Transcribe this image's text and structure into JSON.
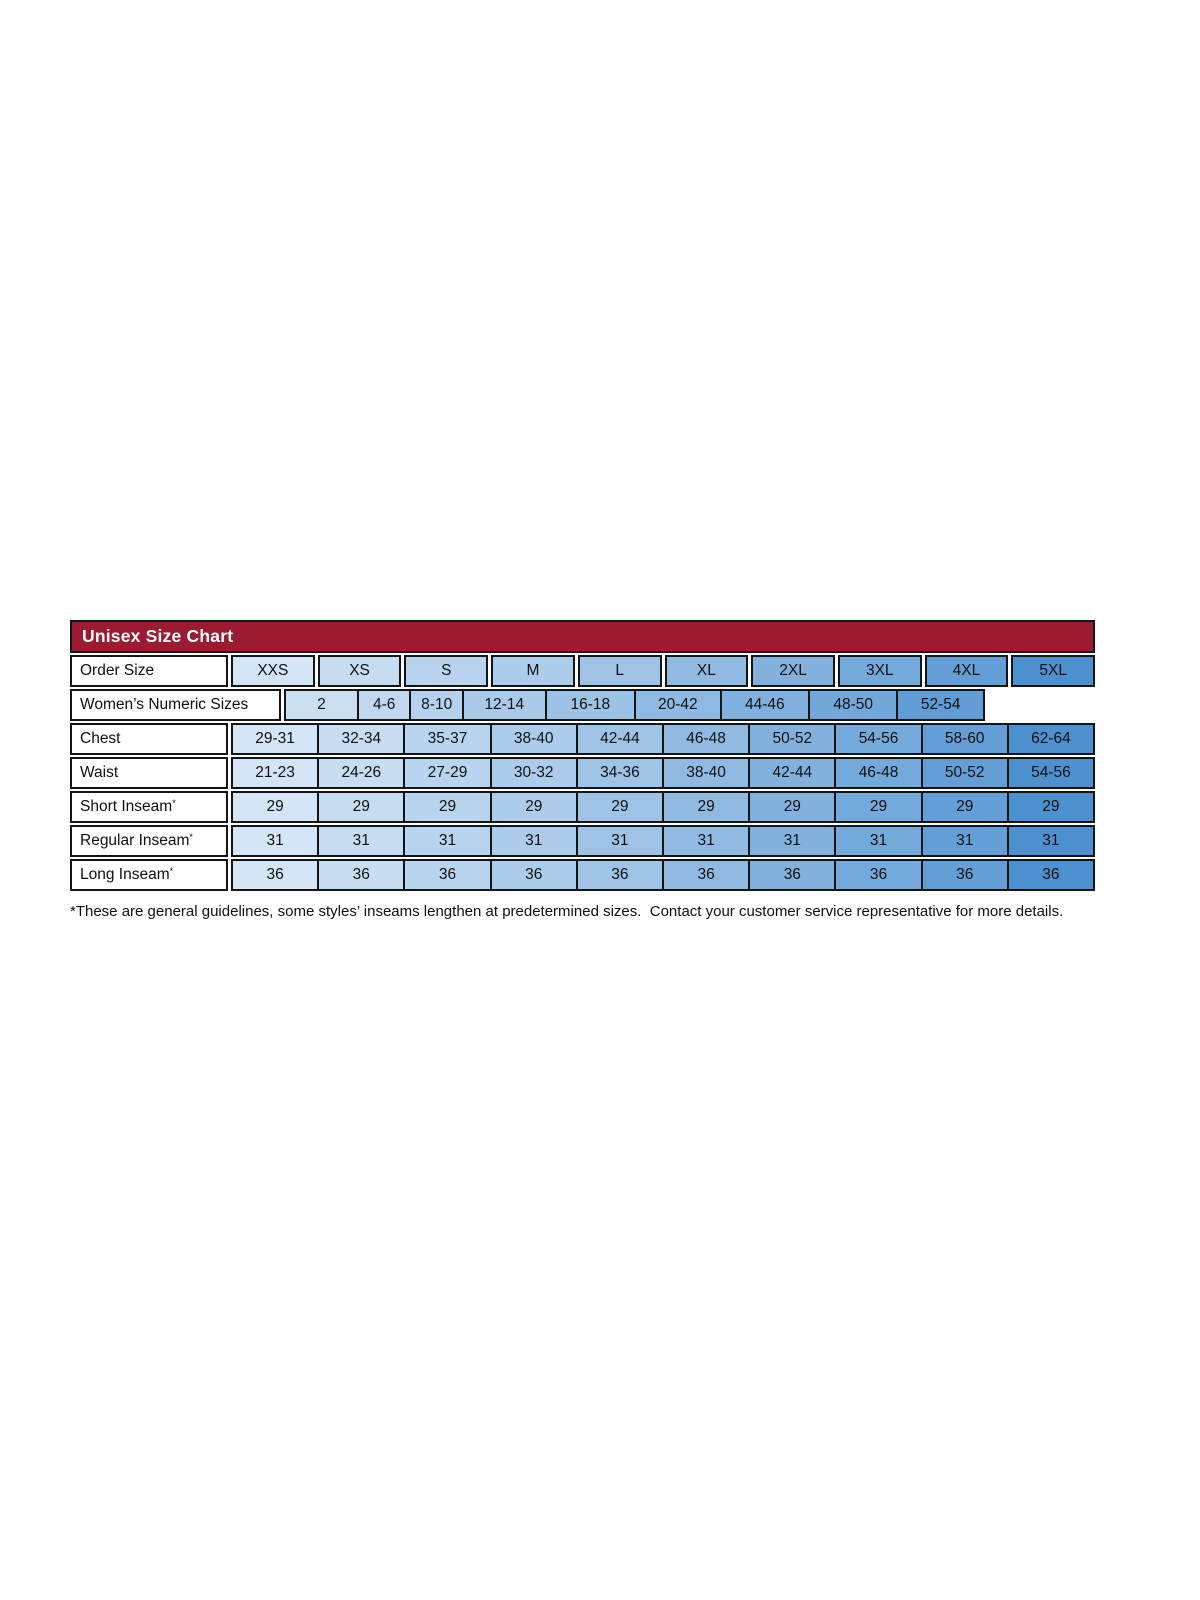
{
  "title": "Unisex Size Chart",
  "table": {
    "order_row": {
      "label": "Order Size",
      "values": [
        "XXS",
        "XS",
        "S",
        "M",
        "L",
        "XL",
        "2XL",
        "3XL",
        "4XL",
        "5XL"
      ]
    },
    "womens_row": {
      "label": "Women’s Numeric Sizes",
      "values": [
        "2",
        "4-6",
        "8-10",
        "12-14",
        "16-18",
        "20-42",
        "44-46",
        "48-50",
        "52-54"
      ]
    },
    "rows": [
      {
        "label": "Chest",
        "sup": "",
        "values": [
          "29-31",
          "32-34",
          "35-37",
          "38-40",
          "42-44",
          "46-48",
          "50-52",
          "54-56",
          "58-60",
          "62-64"
        ]
      },
      {
        "label": "Waist",
        "sup": "",
        "values": [
          "21-23",
          "24-26",
          "27-29",
          "30-32",
          "34-36",
          "38-40",
          "42-44",
          "46-48",
          "50-52",
          "54-56"
        ]
      },
      {
        "label": "Short Inseam",
        "sup": "*",
        "values": [
          "29",
          "29",
          "29",
          "29",
          "29",
          "29",
          "29",
          "29",
          "29",
          "29"
        ]
      },
      {
        "label": "Regular Inseam",
        "sup": "*",
        "values": [
          "31",
          "31",
          "31",
          "31",
          "31",
          "31",
          "31",
          "31",
          "31",
          "31"
        ]
      },
      {
        "label": "Long Inseam",
        "sup": "*",
        "values": [
          "36",
          "36",
          "36",
          "36",
          "36",
          "36",
          "36",
          "36",
          "36",
          "36"
        ]
      }
    ]
  },
  "footnote": "*These are general guidelines, some styles’ inseams lengthen at predetermined sizes.  Contact your customer service representative for more details.",
  "palette": {
    "header_red": "#9C1B30",
    "columns": [
      "#D3E5F6",
      "#C7DDF2",
      "#B9D4EE",
      "#ABCCEA",
      "#9EC3E6",
      "#90BAE2",
      "#82B1DE",
      "#74A9DB",
      "#639ED6",
      "#4C90CF"
    ],
    "womens": [
      "#CBDFF3",
      "#C0D9F0",
      "#B6D1ED",
      "#AACAE9",
      "#9CC2E6",
      "#8EB9E2",
      "#80B0DE",
      "#71A7DA",
      "#609CD5"
    ]
  }
}
